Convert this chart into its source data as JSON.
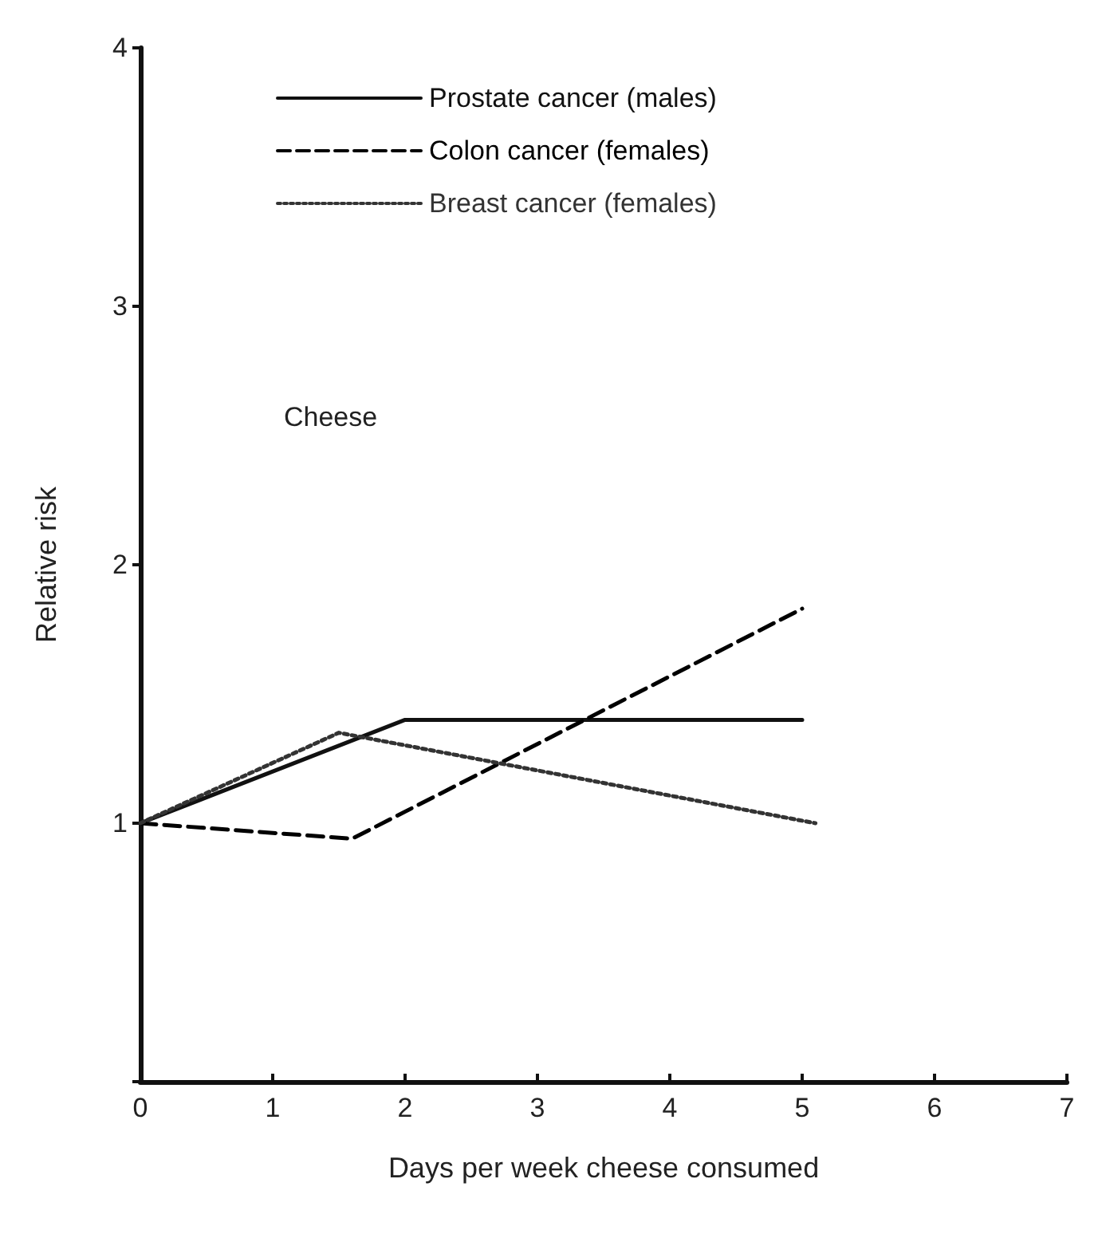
{
  "chart_data": {
    "type": "line",
    "xlabel": "Days per week cheese consumed",
    "ylabel": "Relative risk",
    "annotations": [
      "Cheese"
    ],
    "series": [
      {
        "name": "Prostate cancer (males)",
        "color": "#111111",
        "line_style": "solid",
        "x": [
          0,
          2,
          5
        ],
        "values": [
          1,
          1.4,
          1.4
        ]
      },
      {
        "name": "Colon cancer (females)",
        "color": "#000000",
        "line_style": "dashed",
        "x": [
          0,
          1.6,
          5
        ],
        "values": [
          1,
          0.94,
          1.83
        ]
      },
      {
        "name": "Breast cancer (females)",
        "color": "#333333",
        "line_style": "dotted",
        "x": [
          0,
          1.5,
          5.1
        ],
        "values": [
          1,
          1.35,
          1
        ]
      }
    ],
    "xlim": [
      0,
      7
    ],
    "xticks": [
      0,
      1,
      2,
      3,
      4,
      5,
      6,
      7
    ],
    "ylim": [
      0,
      4
    ],
    "yticks": [
      {
        "value": 0,
        "label": null
      },
      1,
      2,
      3,
      4
    ],
    "grid": false,
    "legend": "top",
    "marker": "none"
  }
}
